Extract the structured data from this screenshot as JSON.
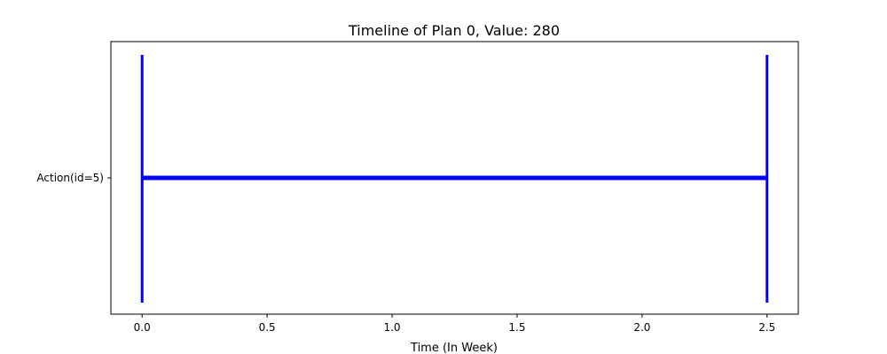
{
  "chart_data": {
    "type": "timeline",
    "title": "Timeline of Plan 0, Value: 280",
    "xlabel": "Time (In Week)",
    "ylabel": "",
    "xlim": [
      -0.125,
      2.625
    ],
    "x_ticks": [
      0.0,
      0.5,
      1.0,
      1.5,
      2.0,
      2.5
    ],
    "x_tick_labels": [
      "0.0",
      "0.5",
      "1.0",
      "1.5",
      "2.0",
      "2.5"
    ],
    "y_tick_labels": [
      "Action(id=5)"
    ],
    "grid": false,
    "legend": "none",
    "series_color": "#0000ff",
    "intervals": [
      {
        "label": "Action(id=5)",
        "start": 0.0,
        "end": 2.5
      }
    ],
    "markers": [
      0.0,
      2.5
    ]
  }
}
